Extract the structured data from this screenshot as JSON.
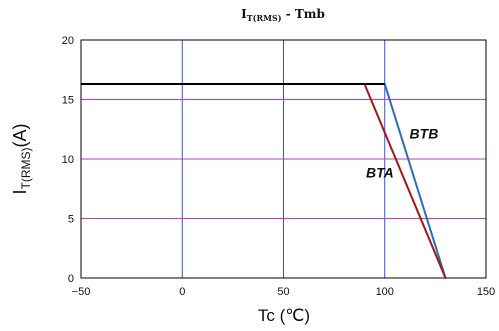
{
  "chart_data": {
    "type": "line",
    "title": {
      "main": "I",
      "sub": "T(RMS)",
      "suffix": " - Tmb"
    },
    "ylabel": {
      "main": "I",
      "sub": "T(RMS)",
      "suffix": "(A)"
    },
    "xlabel": "Tc (℃)",
    "xlim": [
      -50,
      150
    ],
    "ylim": [
      0,
      20
    ],
    "xticks": [
      -50,
      0,
      50,
      100,
      150
    ],
    "xtick_labels": [
      "−50",
      "0",
      "50",
      "100",
      "150"
    ],
    "yticks": [
      0,
      5,
      10,
      15,
      20
    ],
    "ytick_labels": [
      "0",
      "5",
      "10",
      "15",
      "20"
    ],
    "grid": true,
    "colors": {
      "grid_vertical": "#3b4fd0",
      "grid_horizontal": "#c23cc2",
      "frame": "#000000",
      "flat": "#000000"
    },
    "series": [
      {
        "name": "BTB",
        "color": "#2e6db4",
        "points": [
          [
            -50,
            16.3
          ],
          [
            100,
            16.3
          ],
          [
            130,
            0
          ]
        ]
      },
      {
        "name": "BTA",
        "color": "#a01818",
        "points": [
          [
            -50,
            16.3
          ],
          [
            90,
            16.3
          ],
          [
            130,
            0
          ]
        ]
      }
    ]
  }
}
